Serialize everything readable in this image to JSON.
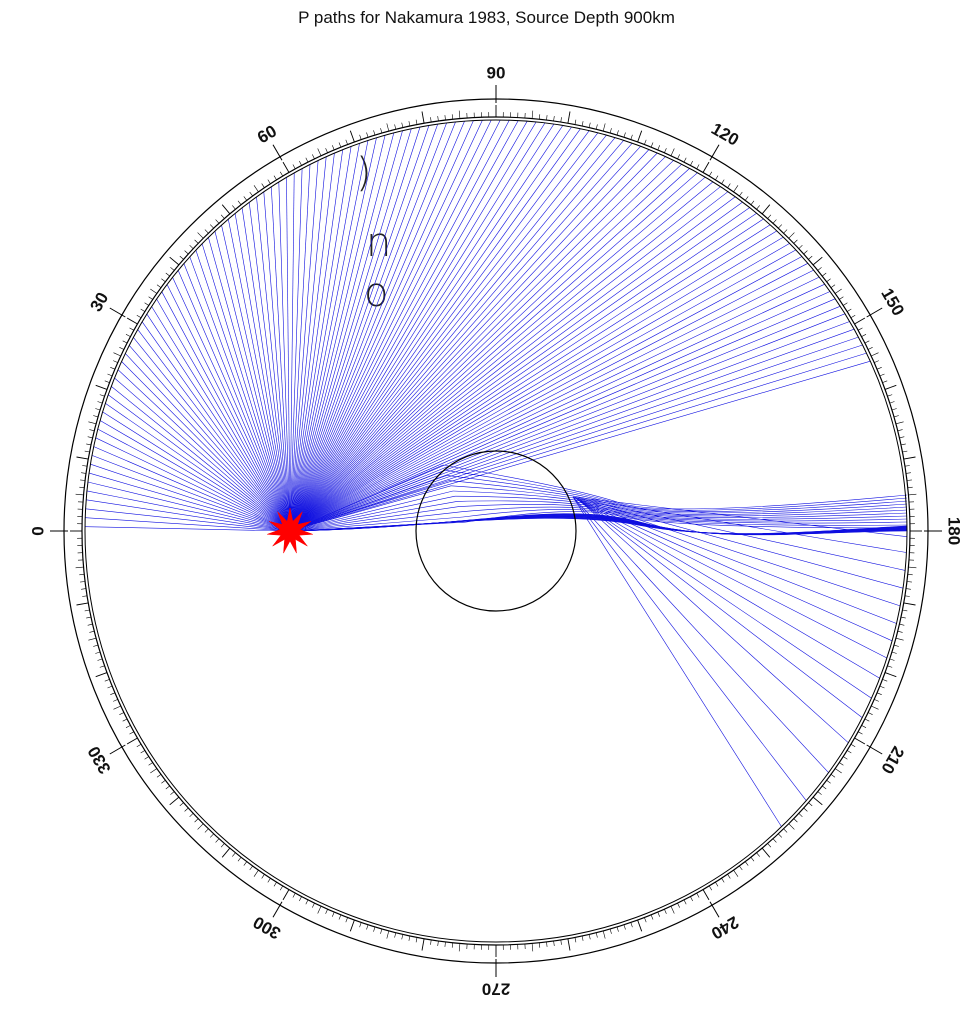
{
  "title": "P paths for  Nakamura 1983, Source Depth 900km",
  "stray_glyphs": [
    ")",
    "n",
    "o"
  ],
  "angle_labels": [
    "0",
    "30",
    "60",
    "90",
    "120",
    "150",
    "180",
    "210",
    "240",
    "270",
    "300",
    "330"
  ],
  "colors": {
    "ray": "#1010e0",
    "source": "#ff0000",
    "outline": "#000000"
  },
  "source_marker": "red-star",
  "source_depth_km": 900
}
